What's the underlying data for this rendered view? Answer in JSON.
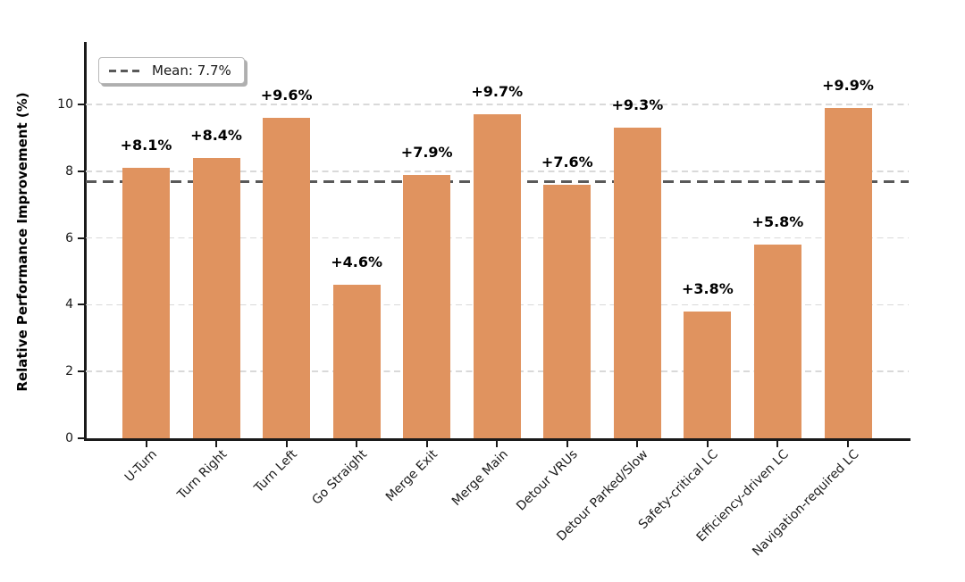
{
  "chart_data": {
    "type": "bar",
    "title": "",
    "xlabel": "",
    "ylabel": "Relative Performance Improvement (%)",
    "categories": [
      "U-Turn",
      "Turn Right",
      "Turn Left",
      "Go Straight",
      "Merge Exit",
      "Merge Main",
      "Detour VRUs",
      "Detour Parked/Slow",
      "Safety-critical LC",
      "Efficiency-driven LC",
      "Navigation-required LC"
    ],
    "values": [
      8.1,
      8.4,
      9.6,
      4.6,
      7.9,
      9.7,
      7.6,
      9.3,
      3.8,
      5.8,
      9.9
    ],
    "bar_labels": [
      "+8.1%",
      "+8.4%",
      "+9.6%",
      "+4.6%",
      "+7.9%",
      "+9.7%",
      "+7.6%",
      "+9.3%",
      "+3.8%",
      "+5.8%",
      "+9.9%"
    ],
    "mean_value": 7.7,
    "legend": {
      "label": "Mean: 7.7%",
      "position": "upper-left",
      "line_style": "dashed"
    },
    "yticks": [
      0,
      2,
      4,
      6,
      8,
      10
    ],
    "ylim": [
      0,
      12
    ],
    "grid": "horizontal-dashed",
    "legend_position": "upper left",
    "colors": {
      "bar": "#e0935f",
      "mean_line": "#595959",
      "gridline": "#d9d9d9",
      "axis": "#1a1a1a"
    }
  }
}
